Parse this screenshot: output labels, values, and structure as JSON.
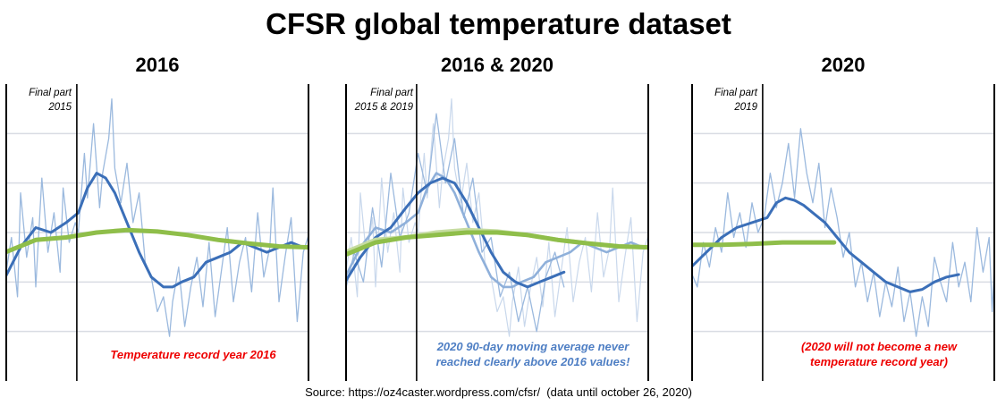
{
  "title": "CFSR global temperature dataset",
  "source": "Source: https://oz4caster.wordpress.com/cfsr/  (data until october 26, 2020)",
  "colors": {
    "daily": "#9bb9de",
    "daily_faded": "#c9d8ec",
    "avg90": "#3b6fb8",
    "avg90_faded": "#8fb0da",
    "baseline": "#8fbe4a",
    "baseline_faded": "#c6dca1",
    "grid": "#d9dce3",
    "red_text": "#ee0000",
    "blue_text": "#4f7fc4"
  },
  "chart_data": [
    {
      "type": "line",
      "panel_title": "2016",
      "corner_label": [
        "Final part",
        "2015"
      ],
      "note": [
        "Temperature record year 2016"
      ],
      "note_color": "red",
      "x_range": [
        0,
        1
      ],
      "divider_x": 0.235,
      "ylim": [
        0,
        6
      ],
      "grid_y": [
        1,
        2,
        3,
        4,
        5
      ],
      "series": [
        {
          "role": "daily",
          "x": [
            0.0,
            0.02,
            0.04,
            0.05,
            0.07,
            0.09,
            0.1,
            0.12,
            0.14,
            0.16,
            0.18,
            0.19,
            0.21,
            0.23,
            0.24,
            0.26,
            0.27,
            0.29,
            0.31,
            0.32,
            0.34,
            0.35,
            0.36,
            0.38,
            0.4,
            0.42,
            0.44,
            0.46,
            0.48,
            0.5,
            0.52,
            0.54,
            0.55,
            0.57,
            0.59,
            0.61,
            0.63,
            0.65,
            0.67,
            0.69,
            0.71,
            0.73,
            0.75,
            0.77,
            0.79,
            0.81,
            0.83,
            0.85,
            0.87,
            0.88,
            0.9,
            0.92,
            0.94,
            0.96,
            0.98,
            1.0
          ],
          "y": [
            2.1,
            2.9,
            1.7,
            3.8,
            2.5,
            3.3,
            1.9,
            4.1,
            2.6,
            3.4,
            2.2,
            3.9,
            2.8,
            3.2,
            3.0,
            4.6,
            3.7,
            5.2,
            3.5,
            4.2,
            4.9,
            5.7,
            4.3,
            3.6,
            4.4,
            3.2,
            3.8,
            2.4,
            2.1,
            1.4,
            1.7,
            0.9,
            1.6,
            2.3,
            1.1,
            1.9,
            2.5,
            1.5,
            2.8,
            1.3,
            2.2,
            3.1,
            1.6,
            2.4,
            2.9,
            1.8,
            3.4,
            2.1,
            2.7,
            3.9,
            1.6,
            2.5,
            3.3,
            1.2,
            2.6,
            3.0
          ]
        },
        {
          "role": "avg90",
          "x": [
            0.0,
            0.05,
            0.1,
            0.15,
            0.2,
            0.24,
            0.27,
            0.3,
            0.33,
            0.36,
            0.4,
            0.44,
            0.48,
            0.52,
            0.55,
            0.58,
            0.62,
            0.66,
            0.7,
            0.74,
            0.78,
            0.82,
            0.86,
            0.9,
            0.94,
            0.98,
            1.0
          ],
          "y": [
            2.1,
            2.7,
            3.1,
            3.0,
            3.2,
            3.4,
            3.9,
            4.2,
            4.1,
            3.8,
            3.2,
            2.6,
            2.1,
            1.9,
            1.9,
            2.0,
            2.1,
            2.4,
            2.5,
            2.6,
            2.8,
            2.7,
            2.6,
            2.7,
            2.8,
            2.7,
            2.7
          ]
        },
        {
          "role": "baseline",
          "x": [
            0.0,
            0.1,
            0.2,
            0.3,
            0.4,
            0.5,
            0.6,
            0.7,
            0.8,
            0.9,
            1.0
          ],
          "y": [
            2.6,
            2.85,
            2.9,
            3.0,
            3.05,
            3.02,
            2.95,
            2.85,
            2.78,
            2.72,
            2.7
          ]
        }
      ]
    },
    {
      "type": "line",
      "panel_title": "2016 & 2020",
      "corner_label": [
        "Final part",
        "2015 & 2019"
      ],
      "note": [
        "2020 90-day moving average never",
        "reached clearly above 2016 values!"
      ],
      "note_color": "blue",
      "x_range": [
        0,
        1
      ],
      "divider_x": 0.235,
      "ylim": [
        0,
        6
      ],
      "grid_y": [
        1,
        2,
        3,
        4,
        5
      ],
      "series": [
        {
          "role": "daily_faded",
          "x": [
            0.0,
            0.02,
            0.04,
            0.05,
            0.07,
            0.09,
            0.1,
            0.12,
            0.14,
            0.16,
            0.18,
            0.19,
            0.21,
            0.23,
            0.24,
            0.26,
            0.27,
            0.29,
            0.31,
            0.32,
            0.34,
            0.35,
            0.36,
            0.38,
            0.4,
            0.42,
            0.44,
            0.46,
            0.48,
            0.5,
            0.52,
            0.54,
            0.55,
            0.57,
            0.59,
            0.61,
            0.63,
            0.65,
            0.67,
            0.69,
            0.71,
            0.73,
            0.75,
            0.77,
            0.79,
            0.81,
            0.83,
            0.85,
            0.87,
            0.88,
            0.9,
            0.92,
            0.94,
            0.96,
            0.98,
            1.0
          ],
          "y": [
            2.1,
            2.9,
            1.7,
            3.8,
            2.5,
            3.3,
            1.9,
            4.1,
            2.6,
            3.4,
            2.2,
            3.9,
            2.8,
            3.2,
            3.0,
            4.6,
            3.7,
            5.2,
            3.5,
            4.2,
            4.9,
            5.7,
            4.3,
            3.6,
            4.4,
            3.2,
            3.8,
            2.4,
            2.1,
            1.4,
            1.7,
            0.9,
            1.6,
            2.3,
            1.1,
            1.9,
            2.5,
            1.5,
            2.8,
            1.3,
            2.2,
            3.1,
            1.6,
            2.4,
            2.9,
            1.8,
            3.4,
            2.1,
            2.7,
            3.9,
            1.6,
            2.5,
            3.3,
            1.2,
            2.6,
            3.0
          ]
        },
        {
          "role": "daily",
          "x": [
            0.0,
            0.03,
            0.06,
            0.09,
            0.12,
            0.15,
            0.18,
            0.21,
            0.24,
            0.27,
            0.3,
            0.33,
            0.36,
            0.39,
            0.42,
            0.45,
            0.48,
            0.51,
            0.54,
            0.57,
            0.6,
            0.63,
            0.66,
            0.69,
            0.72
          ],
          "y": [
            1.8,
            2.6,
            2.0,
            3.5,
            2.3,
            4.2,
            2.9,
            3.4,
            4.6,
            3.8,
            5.4,
            4.0,
            4.9,
            3.3,
            4.1,
            2.6,
            2.9,
            1.7,
            2.2,
            1.2,
            1.9,
            1.0,
            2.1,
            2.6,
            1.9
          ]
        },
        {
          "role": "avg90_faded",
          "x": [
            0.0,
            0.05,
            0.1,
            0.15,
            0.2,
            0.24,
            0.27,
            0.3,
            0.33,
            0.36,
            0.4,
            0.44,
            0.48,
            0.52,
            0.55,
            0.58,
            0.62,
            0.66,
            0.7,
            0.74,
            0.78,
            0.82,
            0.86,
            0.9,
            0.94,
            0.98,
            1.0
          ],
          "y": [
            2.1,
            2.7,
            3.1,
            3.0,
            3.2,
            3.4,
            3.9,
            4.2,
            4.1,
            3.8,
            3.2,
            2.6,
            2.1,
            1.9,
            1.9,
            2.0,
            2.1,
            2.4,
            2.5,
            2.6,
            2.8,
            2.7,
            2.6,
            2.7,
            2.8,
            2.7,
            2.7
          ]
        },
        {
          "role": "avg90",
          "x": [
            0.0,
            0.05,
            0.1,
            0.15,
            0.2,
            0.24,
            0.28,
            0.32,
            0.36,
            0.4,
            0.44,
            0.48,
            0.52,
            0.56,
            0.6,
            0.64,
            0.68,
            0.72
          ],
          "y": [
            2.0,
            2.5,
            2.9,
            3.1,
            3.5,
            3.8,
            4.0,
            4.1,
            4.0,
            3.6,
            3.1,
            2.6,
            2.2,
            2.0,
            1.9,
            2.0,
            2.1,
            2.2
          ]
        },
        {
          "role": "baseline_faded",
          "x": [
            0.0,
            0.1,
            0.2,
            0.3,
            0.4,
            0.5,
            0.6,
            0.7,
            0.8,
            0.9,
            1.0
          ],
          "y": [
            2.6,
            2.85,
            2.9,
            3.0,
            3.05,
            3.02,
            2.95,
            2.85,
            2.78,
            2.72,
            2.7
          ]
        },
        {
          "role": "baseline",
          "x": [
            0.0,
            0.1,
            0.2,
            0.3,
            0.4,
            0.5,
            0.6,
            0.7,
            0.8,
            0.9,
            1.0
          ],
          "y": [
            2.55,
            2.8,
            2.9,
            2.95,
            3.0,
            3.0,
            2.95,
            2.85,
            2.78,
            2.72,
            2.7
          ]
        }
      ]
    },
    {
      "type": "line",
      "panel_title": "2020",
      "corner_label": [
        "Final part",
        "2019"
      ],
      "note": [
        "(2020 will not become a new",
        "temperature record year)"
      ],
      "note_color": "red",
      "x_range": [
        0,
        1
      ],
      "divider_x": 0.235,
      "ylim": [
        0,
        6
      ],
      "grid_y": [
        1,
        2,
        3,
        4,
        5
      ],
      "series": [
        {
          "role": "daily",
          "x": [
            0.0,
            0.02,
            0.04,
            0.06,
            0.08,
            0.1,
            0.12,
            0.14,
            0.16,
            0.18,
            0.2,
            0.22,
            0.24,
            0.26,
            0.28,
            0.3,
            0.32,
            0.34,
            0.36,
            0.38,
            0.4,
            0.42,
            0.44,
            0.46,
            0.48,
            0.5,
            0.52,
            0.54,
            0.56,
            0.58,
            0.6,
            0.62,
            0.64,
            0.66,
            0.68,
            0.7,
            0.72,
            0.74,
            0.76,
            0.78,
            0.8,
            0.82,
            0.84,
            0.86,
            0.88,
            0.9,
            0.92,
            0.94,
            0.96,
            0.98,
            0.99,
            1.0
          ],
          "y": [
            2.2,
            1.9,
            2.8,
            2.3,
            3.1,
            2.6,
            3.8,
            2.9,
            3.4,
            2.7,
            3.6,
            3.0,
            3.3,
            4.2,
            3.5,
            4.0,
            4.8,
            3.7,
            5.1,
            4.2,
            3.6,
            4.4,
            3.1,
            3.9,
            3.3,
            2.5,
            3.0,
            1.9,
            2.4,
            1.6,
            2.2,
            1.3,
            2.0,
            1.5,
            2.3,
            1.2,
            1.8,
            0.9,
            1.7,
            1.1,
            2.5,
            2.0,
            1.6,
            2.8,
            1.9,
            2.4,
            1.6,
            3.1,
            2.2,
            2.9,
            1.4,
            2.7
          ]
        },
        {
          "role": "avg90",
          "x": [
            0.0,
            0.05,
            0.1,
            0.15,
            0.2,
            0.25,
            0.28,
            0.31,
            0.34,
            0.37,
            0.4,
            0.44,
            0.48,
            0.52,
            0.56,
            0.6,
            0.64,
            0.68,
            0.72,
            0.76,
            0.8,
            0.84,
            0.88
          ],
          "y": [
            2.3,
            2.6,
            2.9,
            3.1,
            3.2,
            3.3,
            3.6,
            3.7,
            3.65,
            3.55,
            3.4,
            3.2,
            2.9,
            2.6,
            2.4,
            2.2,
            2.0,
            1.9,
            1.8,
            1.85,
            2.0,
            2.1,
            2.15
          ]
        },
        {
          "role": "baseline",
          "x": [
            0.0,
            0.1,
            0.2,
            0.3,
            0.4,
            0.47
          ],
          "y": [
            2.75,
            2.75,
            2.77,
            2.8,
            2.8,
            2.8
          ]
        }
      ]
    }
  ]
}
